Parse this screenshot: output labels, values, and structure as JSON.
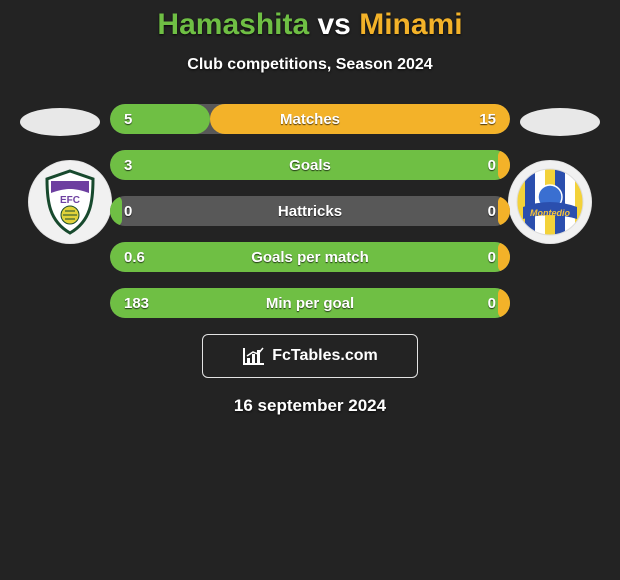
{
  "title": {
    "player1": "Hamashita",
    "vs": "vs",
    "player2": "Minami",
    "player1_color": "#6fbf44",
    "player2_color": "#f3b229",
    "vs_color": "#ffffff"
  },
  "subtitle": "Club competitions, Season 2024",
  "background_color": "#232323",
  "left_color": "#6fbf44",
  "right_color": "#f3b229",
  "track_color": "#585858",
  "stats": [
    {
      "label": "Matches",
      "left_val": "5",
      "right_val": "15",
      "left_pct": 25,
      "right_pct": 75
    },
    {
      "label": "Goals",
      "left_val": "3",
      "right_val": "0",
      "left_pct": 100,
      "right_pct": 3
    },
    {
      "label": "Hattricks",
      "left_val": "0",
      "right_val": "0",
      "left_pct": 3,
      "right_pct": 3
    },
    {
      "label": "Goals per match",
      "left_val": "0.6",
      "right_val": "0",
      "left_pct": 100,
      "right_pct": 3
    },
    {
      "label": "Min per goal",
      "left_val": "183",
      "right_val": "0",
      "left_pct": 100,
      "right_pct": 3
    }
  ],
  "brand": "FcTables.com",
  "date": "16 september 2024",
  "crest_left": {
    "bg": "#f1f1f1",
    "shield_border": "#184a2e",
    "shield_fill": "#ffffff",
    "top_band": "#6d3fa0",
    "initials": "EFC",
    "initials_color": "#6d3fa0",
    "ball_color": "#e0d23a"
  },
  "crest_right": {
    "bg": "#f1f1f1",
    "stripe_a": "#f3d23a",
    "stripe_b": "#2b4fae",
    "stripe_c": "#ffffff",
    "banner_fill": "#2b4fae",
    "banner_text": "Montedio",
    "banner_text_color": "#f5c33b"
  }
}
